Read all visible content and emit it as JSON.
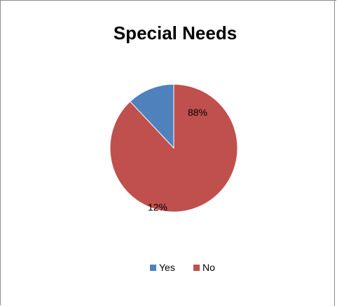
{
  "chart_data": {
    "type": "pie",
    "title": "Special Needs",
    "categories": [
      "Yes",
      "No"
    ],
    "values": [
      12,
      88
    ],
    "data_labels": [
      "12%",
      "88%"
    ],
    "colors": [
      "#4F81BD",
      "#C0504D"
    ],
    "legend_position": "bottom"
  }
}
